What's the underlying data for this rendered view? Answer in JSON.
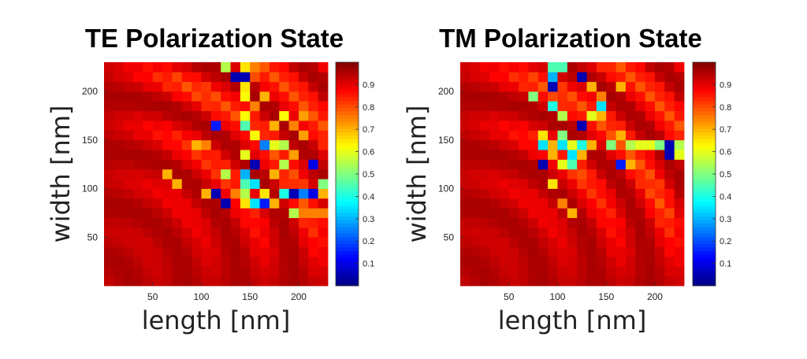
{
  "chart_data": [
    {
      "type": "heatmap",
      "title": "TE Polarization State",
      "xlabel": "length [nm]",
      "ylabel": "width [nm]",
      "xlim": [
        0,
        230
      ],
      "ylim": [
        0,
        230
      ],
      "xticks": [
        50,
        100,
        150,
        200
      ],
      "yticks": [
        50,
        100,
        150,
        200
      ],
      "grid": false,
      "colormap": "jet",
      "colorbar": {
        "range": [
          0.0,
          1.0
        ],
        "ticks": [
          0.1,
          0.2,
          0.3,
          0.4,
          0.5,
          0.6,
          0.7,
          0.8,
          0.9
        ]
      },
      "grid_size": [
        23,
        23
      ],
      "cell_size_nm": 10,
      "background_value": 0.96,
      "cells": [
        {
          "x": 125,
          "y": 225,
          "value": 0.55
        },
        {
          "x": 145,
          "y": 225,
          "value": 0.65
        },
        {
          "x": 155,
          "y": 225,
          "value": 0.75
        },
        {
          "x": 135,
          "y": 215,
          "value": 0.05
        },
        {
          "x": 145,
          "y": 215,
          "value": 0.05
        },
        {
          "x": 155,
          "y": 215,
          "value": 0.8
        },
        {
          "x": 145,
          "y": 205,
          "value": 0.65
        },
        {
          "x": 145,
          "y": 195,
          "value": 0.62
        },
        {
          "x": 165,
          "y": 195,
          "value": 0.7
        },
        {
          "x": 155,
          "y": 185,
          "value": 0.75
        },
        {
          "x": 145,
          "y": 175,
          "value": 0.62
        },
        {
          "x": 185,
          "y": 175,
          "value": 0.62
        },
        {
          "x": 205,
          "y": 175,
          "value": 0.72
        },
        {
          "x": 115,
          "y": 165,
          "value": 0.15
        },
        {
          "x": 145,
          "y": 165,
          "value": 0.45
        },
        {
          "x": 175,
          "y": 165,
          "value": 0.7
        },
        {
          "x": 195,
          "y": 165,
          "value": 0.75
        },
        {
          "x": 155,
          "y": 155,
          "value": 0.62
        },
        {
          "x": 205,
          "y": 155,
          "value": 0.72
        },
        {
          "x": 165,
          "y": 145,
          "value": 0.25
        },
        {
          "x": 175,
          "y": 145,
          "value": 0.6
        },
        {
          "x": 185,
          "y": 145,
          "value": 0.55
        },
        {
          "x": 95,
          "y": 145,
          "value": 0.7
        },
        {
          "x": 105,
          "y": 145,
          "value": 0.75
        },
        {
          "x": 145,
          "y": 135,
          "value": 0.6
        },
        {
          "x": 195,
          "y": 135,
          "value": 0.72
        },
        {
          "x": 155,
          "y": 125,
          "value": 0.05
        },
        {
          "x": 185,
          "y": 125,
          "value": 0.55
        },
        {
          "x": 215,
          "y": 125,
          "value": 0.1
        },
        {
          "x": 145,
          "y": 115,
          "value": 0.3
        },
        {
          "x": 125,
          "y": 115,
          "value": 0.55
        },
        {
          "x": 175,
          "y": 115,
          "value": 0.7
        },
        {
          "x": 65,
          "y": 115,
          "value": 0.7
        },
        {
          "x": 75,
          "y": 105,
          "value": 0.7
        },
        {
          "x": 145,
          "y": 105,
          "value": 0.45
        },
        {
          "x": 155,
          "y": 105,
          "value": 0.35
        },
        {
          "x": 225,
          "y": 105,
          "value": 0.5
        },
        {
          "x": 105,
          "y": 95,
          "value": 0.7
        },
        {
          "x": 115,
          "y": 95,
          "value": 0.05
        },
        {
          "x": 135,
          "y": 95,
          "value": 0.75
        },
        {
          "x": 145,
          "y": 95,
          "value": 0.55
        },
        {
          "x": 165,
          "y": 95,
          "value": 0.65
        },
        {
          "x": 185,
          "y": 95,
          "value": 0.4
        },
        {
          "x": 195,
          "y": 95,
          "value": 0.05
        },
        {
          "x": 205,
          "y": 95,
          "value": 0.25
        },
        {
          "x": 215,
          "y": 95,
          "value": 0.1
        },
        {
          "x": 225,
          "y": 95,
          "value": 0.7
        },
        {
          "x": 125,
          "y": 85,
          "value": 0.05
        },
        {
          "x": 145,
          "y": 85,
          "value": 0.65
        },
        {
          "x": 155,
          "y": 85,
          "value": 0.35
        },
        {
          "x": 165,
          "y": 85,
          "value": 0.15
        },
        {
          "x": 175,
          "y": 85,
          "value": 0.7
        },
        {
          "x": 195,
          "y": 75,
          "value": 0.55
        },
        {
          "x": 205,
          "y": 75,
          "value": 0.75
        },
        {
          "x": 215,
          "y": 75,
          "value": 0.75
        },
        {
          "x": 225,
          "y": 75,
          "value": 0.75
        }
      ]
    },
    {
      "type": "heatmap",
      "title": "TM Polarization State",
      "xlabel": "length [nm]",
      "ylabel": "width [nm]",
      "xlim": [
        0,
        230
      ],
      "ylim": [
        0,
        230
      ],
      "xticks": [
        50,
        100,
        150,
        200
      ],
      "yticks": [
        50,
        100,
        150,
        200
      ],
      "grid": false,
      "colormap": "jet",
      "colorbar": {
        "range": [
          0.0,
          1.0
        ],
        "ticks": [
          0.1,
          0.2,
          0.3,
          0.4,
          0.5,
          0.6,
          0.7,
          0.8,
          0.9
        ]
      },
      "grid_size": [
        23,
        23
      ],
      "cell_size_nm": 10,
      "background_value": 0.96,
      "cells": [
        {
          "x": 95,
          "y": 225,
          "value": 0.45
        },
        {
          "x": 105,
          "y": 225,
          "value": 0.45
        },
        {
          "x": 125,
          "y": 215,
          "value": 0.05
        },
        {
          "x": 135,
          "y": 205,
          "value": 0.7
        },
        {
          "x": 165,
          "y": 205,
          "value": 0.7
        },
        {
          "x": 95,
          "y": 215,
          "value": 0.3
        },
        {
          "x": 95,
          "y": 205,
          "value": 0.05
        },
        {
          "x": 75,
          "y": 195,
          "value": 0.5
        },
        {
          "x": 145,
          "y": 195,
          "value": 0.75
        },
        {
          "x": 95,
          "y": 185,
          "value": 0.4
        },
        {
          "x": 105,
          "y": 175,
          "value": 0.55
        },
        {
          "x": 145,
          "y": 185,
          "value": 0.35
        },
        {
          "x": 135,
          "y": 175,
          "value": 0.6
        },
        {
          "x": 145,
          "y": 175,
          "value": 0.7
        },
        {
          "x": 125,
          "y": 165,
          "value": 0.05
        },
        {
          "x": 85,
          "y": 155,
          "value": 0.65
        },
        {
          "x": 105,
          "y": 155,
          "value": 0.5
        },
        {
          "x": 95,
          "y": 145,
          "value": 0.7
        },
        {
          "x": 85,
          "y": 145,
          "value": 0.35
        },
        {
          "x": 105,
          "y": 145,
          "value": 0.35
        },
        {
          "x": 115,
          "y": 145,
          "value": 0.6
        },
        {
          "x": 125,
          "y": 145,
          "value": 0.4
        },
        {
          "x": 135,
          "y": 145,
          "value": 0.7
        },
        {
          "x": 155,
          "y": 145,
          "value": 0.5
        },
        {
          "x": 175,
          "y": 145,
          "value": 0.55
        },
        {
          "x": 185,
          "y": 145,
          "value": 0.6
        },
        {
          "x": 195,
          "y": 145,
          "value": 0.6
        },
        {
          "x": 205,
          "y": 145,
          "value": 0.5
        },
        {
          "x": 215,
          "y": 145,
          "value": 0.05
        },
        {
          "x": 225,
          "y": 145,
          "value": 0.55
        },
        {
          "x": 165,
          "y": 155,
          "value": 0.7
        },
        {
          "x": 95,
          "y": 135,
          "value": 0.7
        },
        {
          "x": 115,
          "y": 135,
          "value": 0.35
        },
        {
          "x": 125,
          "y": 135,
          "value": 0.7
        },
        {
          "x": 215,
          "y": 135,
          "value": 0.05
        },
        {
          "x": 225,
          "y": 135,
          "value": 0.6
        },
        {
          "x": 85,
          "y": 125,
          "value": 0.05
        },
        {
          "x": 105,
          "y": 125,
          "value": 0.6
        },
        {
          "x": 115,
          "y": 125,
          "value": 0.45
        },
        {
          "x": 165,
          "y": 125,
          "value": 0.15
        },
        {
          "x": 175,
          "y": 125,
          "value": 0.7
        },
        {
          "x": 125,
          "y": 115,
          "value": 0.8
        },
        {
          "x": 95,
          "y": 105,
          "value": 0.65
        },
        {
          "x": 105,
          "y": 85,
          "value": 0.75
        },
        {
          "x": 115,
          "y": 75,
          "value": 0.7
        }
      ]
    }
  ]
}
